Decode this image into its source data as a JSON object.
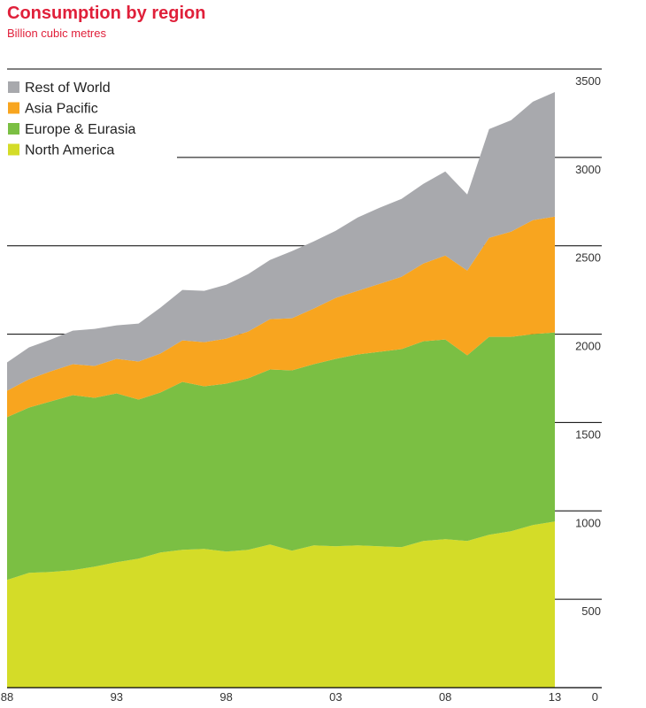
{
  "chart_data": {
    "type": "area",
    "stacked": true,
    "title": "Consumption by region",
    "subtitle": "Billion cubic metres",
    "x": [
      1988,
      1989,
      1990,
      1991,
      1992,
      1993,
      1994,
      1995,
      1996,
      1997,
      1998,
      1999,
      2000,
      2001,
      2002,
      2003,
      2004,
      2005,
      2006,
      2007,
      2008,
      2009,
      2010,
      2011,
      2012,
      2013
    ],
    "x_tick_labels": [
      {
        "x": 1988,
        "label": "88"
      },
      {
        "x": 1993,
        "label": "93"
      },
      {
        "x": 1998,
        "label": "98"
      },
      {
        "x": 2003,
        "label": "03"
      },
      {
        "x": 2008,
        "label": "08"
      },
      {
        "x": 2013,
        "label": "13"
      }
    ],
    "ylim": [
      0,
      3500
    ],
    "y_ticks": [
      0,
      500,
      1000,
      1500,
      2000,
      2500,
      3000,
      3500
    ],
    "y_axis_side": "right",
    "grid": true,
    "legend_position": "top-left",
    "series": [
      {
        "name": "North America",
        "color": "#d4dc28",
        "values": [
          610,
          650,
          655,
          665,
          685,
          710,
          730,
          765,
          780,
          785,
          770,
          780,
          810,
          775,
          805,
          800,
          805,
          800,
          795,
          830,
          840,
          830,
          865,
          885,
          920,
          940
        ]
      },
      {
        "name": "Europe & Eurasia",
        "color": "#7bbf43",
        "values": [
          920,
          935,
          965,
          990,
          955,
          955,
          900,
          905,
          950,
          920,
          950,
          970,
          990,
          1020,
          1025,
          1060,
          1080,
          1100,
          1120,
          1130,
          1130,
          1050,
          1120,
          1100,
          1080,
          1070
        ]
      },
      {
        "name": "Asia Pacific",
        "color": "#f8a51f",
        "values": [
          150,
          160,
          170,
          175,
          180,
          195,
          215,
          220,
          235,
          250,
          255,
          265,
          285,
          295,
          315,
          345,
          360,
          385,
          410,
          440,
          475,
          480,
          560,
          595,
          645,
          655
        ]
      },
      {
        "name": "Rest of World",
        "color": "#a8a9ad",
        "values": [
          160,
          180,
          180,
          190,
          210,
          190,
          215,
          260,
          285,
          290,
          305,
          325,
          335,
          380,
          380,
          380,
          415,
          430,
          440,
          450,
          475,
          430,
          615,
          630,
          670,
          705
        ]
      }
    ]
  }
}
